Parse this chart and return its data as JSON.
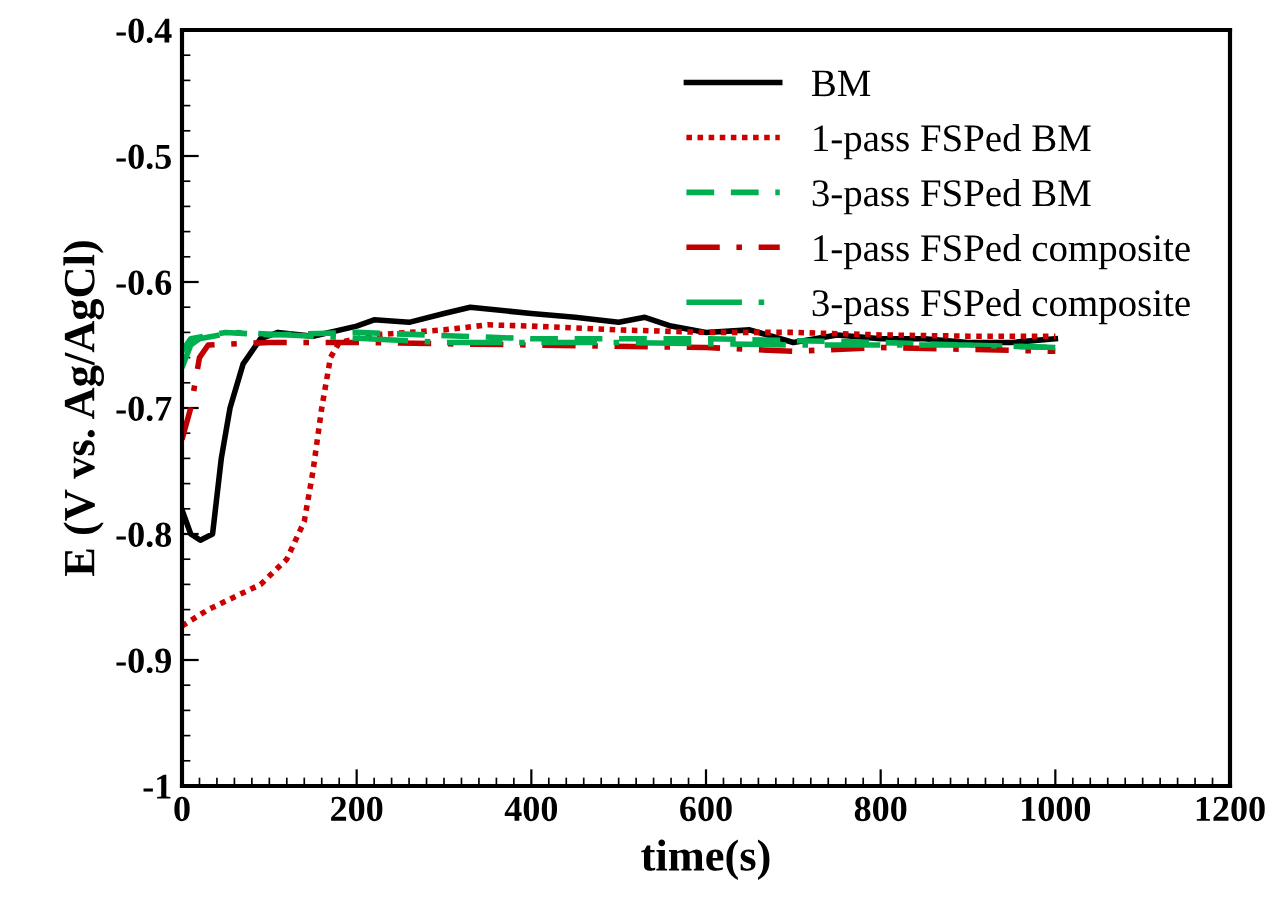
{
  "chart_data": {
    "type": "line",
    "xlabel": "time(s)",
    "ylabel": "E (V vs. Ag/AgCl)",
    "xlim": [
      0,
      1200
    ],
    "xticks": [
      0,
      200,
      400,
      600,
      800,
      1000,
      1200
    ],
    "ylim": [
      -1,
      -0.4
    ],
    "yticks": [
      -1,
      -0.9,
      -0.8,
      -0.7,
      -0.6,
      -0.5,
      -0.4
    ],
    "grid": false,
    "legend": "top right",
    "marker": "none",
    "series": [
      {
        "name": "BM",
        "color": "#000000",
        "line_style": "solid",
        "x": [
          0,
          10,
          21,
          35,
          45,
          55,
          70,
          90,
          110,
          150,
          200,
          220,
          260,
          300,
          330,
          400,
          450,
          500,
          530,
          560,
          600,
          650,
          700,
          750,
          800,
          850,
          900,
          950,
          1000
        ],
        "values": [
          -0.781,
          -0.8,
          -0.805,
          -0.8,
          -0.74,
          -0.7,
          -0.665,
          -0.645,
          -0.64,
          -0.643,
          -0.635,
          -0.63,
          -0.632,
          -0.625,
          -0.62,
          -0.625,
          -0.628,
          -0.632,
          -0.628,
          -0.635,
          -0.64,
          -0.638,
          -0.648,
          -0.642,
          -0.645,
          -0.645,
          -0.648,
          -0.648,
          -0.645
        ]
      },
      {
        "name": "1-pass FSPed BM",
        "color": "#cc0000",
        "line_style": "dotted",
        "x": [
          0,
          30,
          60,
          90,
          120,
          140,
          150,
          160,
          170,
          180,
          220,
          300,
          350,
          400,
          500,
          600,
          700,
          800,
          900,
          1000
        ],
        "values": [
          -0.873,
          -0.86,
          -0.85,
          -0.84,
          -0.82,
          -0.79,
          -0.75,
          -0.7,
          -0.66,
          -0.648,
          -0.642,
          -0.638,
          -0.634,
          -0.635,
          -0.638,
          -0.64,
          -0.64,
          -0.642,
          -0.643,
          -0.643
        ]
      },
      {
        "name": "3-pass FSPed BM",
        "color": "#00b050",
        "line_style": "dashed",
        "x": [
          0,
          10,
          50,
          100,
          200,
          400,
          600,
          800,
          1000
        ],
        "values": [
          -0.655,
          -0.645,
          -0.64,
          -0.642,
          -0.64,
          -0.645,
          -0.645,
          -0.648,
          -0.652
        ]
      },
      {
        "name": "1-pass FSPed composite",
        "color": "#c00000",
        "line_style": "dashdot",
        "x": [
          0,
          10,
          20,
          30,
          100,
          200,
          400,
          600,
          700,
          800,
          1000
        ],
        "values": [
          -0.725,
          -0.7,
          -0.66,
          -0.65,
          -0.648,
          -0.648,
          -0.65,
          -0.652,
          -0.655,
          -0.652,
          -0.655
        ]
      },
      {
        "name": "3-pass FSPed composite",
        "color": "#00b050",
        "line_style": "longdashdot",
        "x": [
          0,
          10,
          20,
          60,
          150,
          300,
          500,
          700,
          900,
          1000
        ],
        "values": [
          -0.668,
          -0.65,
          -0.645,
          -0.64,
          -0.643,
          -0.648,
          -0.648,
          -0.65,
          -0.65,
          -0.652
        ]
      }
    ]
  }
}
